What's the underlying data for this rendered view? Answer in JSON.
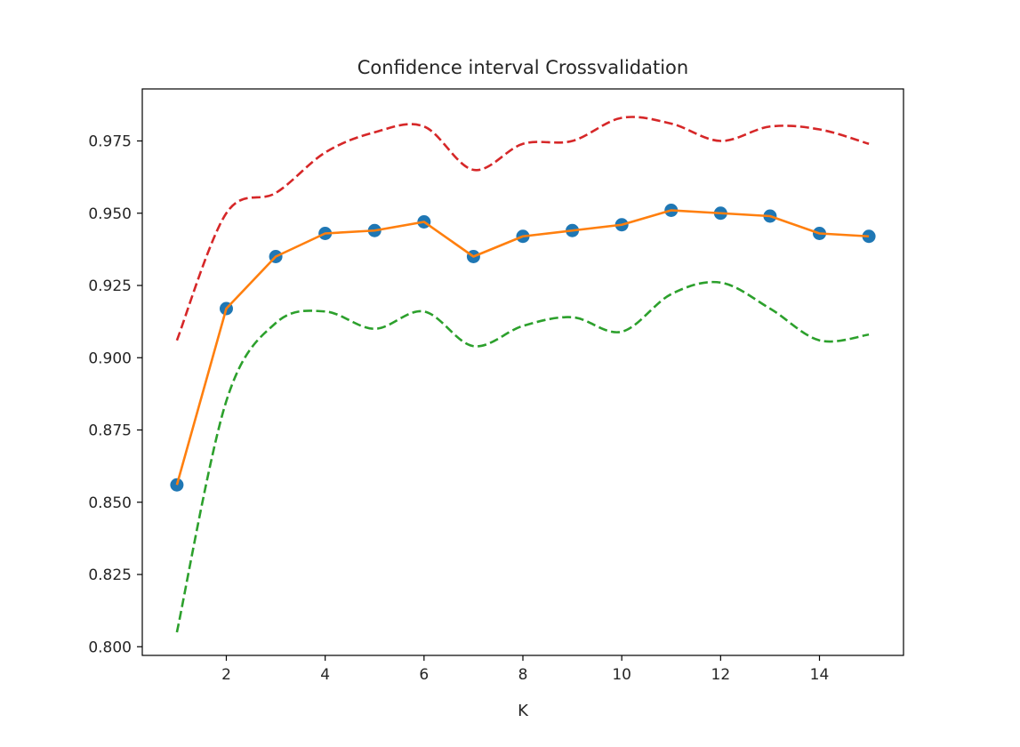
{
  "chart_data": {
    "type": "line",
    "title": "Confidence interval Crossvalidation",
    "xlabel": "K",
    "ylabel": "",
    "xlim": [
      0.3,
      15.7
    ],
    "ylim": [
      0.797,
      0.993
    ],
    "xticks": [
      2,
      4,
      6,
      8,
      10,
      12,
      14
    ],
    "yticks": [
      0.8,
      0.825,
      0.85,
      0.875,
      0.9,
      0.925,
      0.95,
      0.975
    ],
    "ytick_labels": [
      "0.800",
      "0.825",
      "0.850",
      "0.875",
      "0.900",
      "0.925",
      "0.950",
      "0.975"
    ],
    "grid": false,
    "x": [
      1,
      2,
      3,
      4,
      5,
      6,
      7,
      8,
      9,
      10,
      11,
      12,
      13,
      14,
      15
    ],
    "series": [
      {
        "kind": "scatter",
        "color": "#1f77b4",
        "values": [
          0.856,
          0.917,
          0.935,
          0.943,
          0.944,
          0.947,
          0.935,
          0.942,
          0.944,
          0.946,
          0.951,
          0.95,
          0.949,
          0.943,
          0.942
        ]
      },
      {
        "kind": "line",
        "color": "#ff7f0e",
        "style": "solid",
        "values": [
          0.856,
          0.917,
          0.935,
          0.943,
          0.944,
          0.947,
          0.935,
          0.942,
          0.944,
          0.946,
          0.951,
          0.95,
          0.949,
          0.943,
          0.942
        ]
      },
      {
        "kind": "line",
        "color": "#d62728",
        "style": "dashed",
        "smooth": true,
        "values": [
          0.906,
          0.95,
          0.957,
          0.971,
          0.978,
          0.98,
          0.965,
          0.974,
          0.975,
          0.983,
          0.981,
          0.975,
          0.98,
          0.979,
          0.974
        ]
      },
      {
        "kind": "line",
        "color": "#2ca02c",
        "style": "dashed",
        "smooth": true,
        "values": [
          0.805,
          0.885,
          0.912,
          0.916,
          0.91,
          0.916,
          0.904,
          0.911,
          0.914,
          0.909,
          0.922,
          0.926,
          0.917,
          0.906,
          0.908
        ]
      }
    ]
  }
}
